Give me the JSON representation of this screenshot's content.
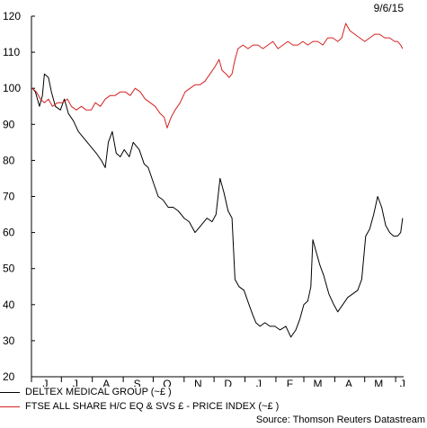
{
  "date_label": "9/6/15",
  "source": "Source: Thomson Reuters Datastream",
  "chart_data": {
    "type": "line",
    "title": "",
    "xlabel": "",
    "ylabel": "",
    "ylim": [
      20,
      120
    ],
    "yticks": [
      20,
      30,
      40,
      50,
      60,
      70,
      80,
      90,
      100,
      110,
      120
    ],
    "x_range": [
      "2014-06-01",
      "2015-06-09"
    ],
    "x_ticks": [
      {
        "label": "J",
        "date": "2014-06-15"
      },
      {
        "label": "J",
        "date": "2014-07-15"
      },
      {
        "label": "A",
        "date": "2014-08-15"
      },
      {
        "label": "S",
        "date": "2014-09-15"
      },
      {
        "label": "O",
        "date": "2014-10-15"
      },
      {
        "label": "N",
        "date": "2014-11-15"
      },
      {
        "label": "D",
        "date": "2014-12-15"
      },
      {
        "label": "J",
        "date": "2015-01-15"
      },
      {
        "label": "F",
        "date": "2015-02-15"
      },
      {
        "label": "M",
        "date": "2015-03-15"
      },
      {
        "label": "A",
        "date": "2015-04-15"
      },
      {
        "label": "M",
        "date": "2015-05-15"
      },
      {
        "label": "J",
        "date": "2015-06-08"
      }
    ],
    "grid": false,
    "legend_position": "bottom",
    "series": [
      {
        "name": "DELTEX MEDICAL GROUP (~£ )",
        "color": "#000000",
        "points": [
          [
            "2014-06-02",
            100
          ],
          [
            "2014-06-05",
            99
          ],
          [
            "2014-06-09",
            95
          ],
          [
            "2014-06-12",
            98
          ],
          [
            "2014-06-14",
            104
          ],
          [
            "2014-06-18",
            103
          ],
          [
            "2014-06-21",
            99
          ],
          [
            "2014-06-25",
            95
          ],
          [
            "2014-06-30",
            94
          ],
          [
            "2014-07-04",
            97
          ],
          [
            "2014-07-08",
            93
          ],
          [
            "2014-07-13",
            91
          ],
          [
            "2014-07-18",
            88
          ],
          [
            "2014-07-24",
            86
          ],
          [
            "2014-07-30",
            84
          ],
          [
            "2014-08-05",
            82
          ],
          [
            "2014-08-10",
            80
          ],
          [
            "2014-08-14",
            78
          ],
          [
            "2014-08-17",
            85
          ],
          [
            "2014-08-21",
            88
          ],
          [
            "2014-08-25",
            82
          ],
          [
            "2014-08-29",
            81
          ],
          [
            "2014-09-02",
            83
          ],
          [
            "2014-09-07",
            81
          ],
          [
            "2014-09-11",
            85
          ],
          [
            "2014-09-17",
            83
          ],
          [
            "2014-09-22",
            79
          ],
          [
            "2014-09-26",
            78
          ],
          [
            "2014-10-01",
            74
          ],
          [
            "2014-10-06",
            70
          ],
          [
            "2014-10-11",
            69
          ],
          [
            "2014-10-16",
            67
          ],
          [
            "2014-10-21",
            67
          ],
          [
            "2014-10-26",
            66
          ],
          [
            "2014-11-01",
            64
          ],
          [
            "2014-11-06",
            63
          ],
          [
            "2014-11-12",
            60
          ],
          [
            "2014-11-18",
            62
          ],
          [
            "2014-11-24",
            64
          ],
          [
            "2014-11-29",
            63
          ],
          [
            "2014-12-03",
            65
          ],
          [
            "2014-12-07",
            75
          ],
          [
            "2014-12-11",
            71
          ],
          [
            "2014-12-15",
            66
          ],
          [
            "2014-12-19",
            64
          ],
          [
            "2014-12-22",
            47
          ],
          [
            "2014-12-26",
            45
          ],
          [
            "2014-12-31",
            44
          ],
          [
            "2015-01-05",
            40
          ],
          [
            "2015-01-09",
            37
          ],
          [
            "2015-01-12",
            35
          ],
          [
            "2015-01-16",
            34
          ],
          [
            "2015-01-21",
            35
          ],
          [
            "2015-01-26",
            34
          ],
          [
            "2015-01-31",
            34
          ],
          [
            "2015-02-05",
            33
          ],
          [
            "2015-02-11",
            34
          ],
          [
            "2015-02-16",
            31
          ],
          [
            "2015-02-21",
            33
          ],
          [
            "2015-02-25",
            36
          ],
          [
            "2015-03-01",
            40
          ],
          [
            "2015-03-05",
            41
          ],
          [
            "2015-03-08",
            45
          ],
          [
            "2015-03-10",
            58
          ],
          [
            "2015-03-13",
            55
          ],
          [
            "2015-03-17",
            51
          ],
          [
            "2015-03-21",
            48
          ],
          [
            "2015-03-26",
            43
          ],
          [
            "2015-03-31",
            40
          ],
          [
            "2015-04-04",
            38
          ],
          [
            "2015-04-09",
            40
          ],
          [
            "2015-04-14",
            42
          ],
          [
            "2015-04-19",
            43
          ],
          [
            "2015-04-24",
            44
          ],
          [
            "2015-04-28",
            47
          ],
          [
            "2015-05-02",
            59
          ],
          [
            "2015-05-06",
            61
          ],
          [
            "2015-05-10",
            65
          ],
          [
            "2015-05-14",
            70
          ],
          [
            "2015-05-18",
            67
          ],
          [
            "2015-05-22",
            62
          ],
          [
            "2015-05-26",
            60
          ],
          [
            "2015-05-30",
            59
          ],
          [
            "2015-06-03",
            59
          ],
          [
            "2015-06-06",
            60
          ],
          [
            "2015-06-08",
            64
          ]
        ]
      },
      {
        "name": "FTSE ALL SHARE H/C EQ & SVS £ - PRICE INDEX (~£ )",
        "color": "#d62020",
        "points": [
          [
            "2014-06-02",
            100
          ],
          [
            "2014-06-06",
            99
          ],
          [
            "2014-06-10",
            97
          ],
          [
            "2014-06-14",
            96
          ],
          [
            "2014-06-18",
            97
          ],
          [
            "2014-06-22",
            95
          ],
          [
            "2014-06-27",
            96
          ],
          [
            "2014-07-02",
            96
          ],
          [
            "2014-07-07",
            97
          ],
          [
            "2014-07-11",
            95
          ],
          [
            "2014-07-16",
            94
          ],
          [
            "2014-07-21",
            95
          ],
          [
            "2014-07-26",
            94
          ],
          [
            "2014-07-31",
            94
          ],
          [
            "2014-08-04",
            96
          ],
          [
            "2014-08-09",
            95
          ],
          [
            "2014-08-14",
            97
          ],
          [
            "2014-08-19",
            98
          ],
          [
            "2014-08-24",
            98
          ],
          [
            "2014-08-29",
            99
          ],
          [
            "2014-09-03",
            99
          ],
          [
            "2014-09-08",
            98
          ],
          [
            "2014-09-13",
            100
          ],
          [
            "2014-09-18",
            99
          ],
          [
            "2014-09-23",
            97
          ],
          [
            "2014-09-28",
            96
          ],
          [
            "2014-10-03",
            95
          ],
          [
            "2014-10-08",
            93
          ],
          [
            "2014-10-12",
            92
          ],
          [
            "2014-10-15",
            89
          ],
          [
            "2014-10-19",
            92
          ],
          [
            "2014-10-23",
            94
          ],
          [
            "2014-10-28",
            96
          ],
          [
            "2014-11-02",
            99
          ],
          [
            "2014-11-07",
            100
          ],
          [
            "2014-11-12",
            101
          ],
          [
            "2014-11-17",
            101
          ],
          [
            "2014-11-22",
            102
          ],
          [
            "2014-11-27",
            104
          ],
          [
            "2014-12-02",
            106
          ],
          [
            "2014-12-06",
            108
          ],
          [
            "2014-12-09",
            105
          ],
          [
            "2014-12-13",
            104
          ],
          [
            "2014-12-16",
            103
          ],
          [
            "2014-12-19",
            104
          ],
          [
            "2014-12-22",
            108
          ],
          [
            "2014-12-25",
            111
          ],
          [
            "2014-12-30",
            112
          ],
          [
            "2015-01-04",
            111
          ],
          [
            "2015-01-09",
            112
          ],
          [
            "2015-01-14",
            112
          ],
          [
            "2015-01-19",
            111
          ],
          [
            "2015-01-24",
            112
          ],
          [
            "2015-01-29",
            113
          ],
          [
            "2015-02-03",
            111
          ],
          [
            "2015-02-08",
            112
          ],
          [
            "2015-02-13",
            113
          ],
          [
            "2015-02-18",
            112
          ],
          [
            "2015-02-23",
            112
          ],
          [
            "2015-02-28",
            113
          ],
          [
            "2015-03-05",
            112
          ],
          [
            "2015-03-10",
            113
          ],
          [
            "2015-03-15",
            113
          ],
          [
            "2015-03-20",
            112
          ],
          [
            "2015-03-25",
            114
          ],
          [
            "2015-03-30",
            114
          ],
          [
            "2015-04-04",
            113
          ],
          [
            "2015-04-08",
            114
          ],
          [
            "2015-04-12",
            118
          ],
          [
            "2015-04-16",
            116
          ],
          [
            "2015-04-21",
            115
          ],
          [
            "2015-04-26",
            114
          ],
          [
            "2015-05-01",
            113
          ],
          [
            "2015-05-06",
            114
          ],
          [
            "2015-05-11",
            115
          ],
          [
            "2015-05-16",
            115
          ],
          [
            "2015-05-21",
            114
          ],
          [
            "2015-05-26",
            114
          ],
          [
            "2015-05-31",
            113
          ],
          [
            "2015-06-03",
            113
          ],
          [
            "2015-06-06",
            112
          ],
          [
            "2015-06-08",
            111
          ]
        ]
      }
    ]
  }
}
